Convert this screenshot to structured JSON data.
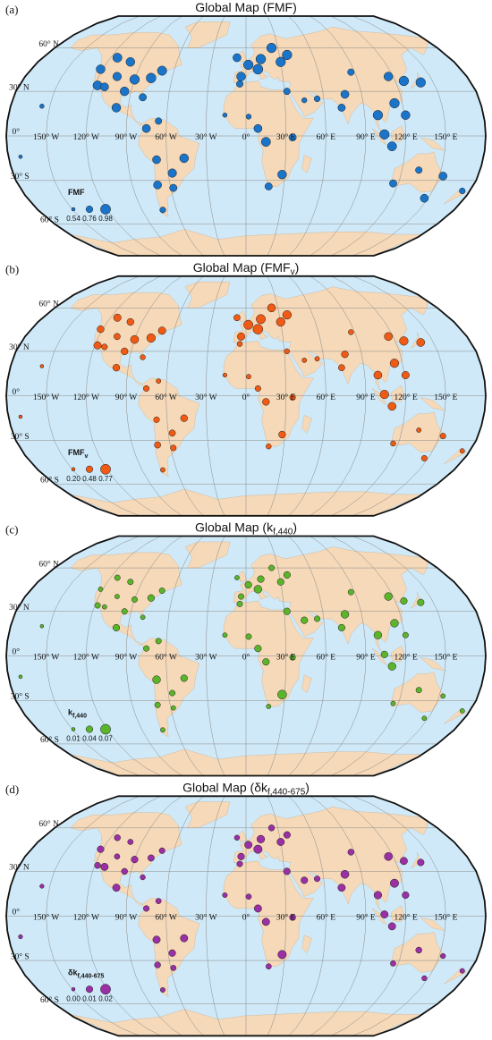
{
  "panels": [
    {
      "label": "(a)",
      "title": "Global Map (FMF)",
      "color": "#1a74c9",
      "legend_title": "FMF",
      "legend": [
        {
          "value": 0.54,
          "label": "0.54"
        },
        {
          "value": 0.76,
          "label": "0.76"
        },
        {
          "value": 0.98,
          "label": "0.98"
        }
      ],
      "values": [
        0.92,
        0.88,
        0.95,
        0.96,
        0.9,
        0.9,
        0.85,
        0.8,
        0.93,
        0.9,
        0.92,
        0.9,
        0.75,
        0.85,
        0.9,
        0.88,
        0.85,
        0.8,
        0.85,
        0.7,
        0.6,
        0.55,
        0.95,
        0.96,
        0.97,
        0.9,
        0.95,
        0.95,
        0.95,
        0.85,
        0.6,
        0.65,
        0.75,
        0.8,
        0.9,
        0.8,
        0.92,
        0.75,
        0.85,
        0.85,
        0.8,
        0.95,
        0.9,
        0.95,
        0.95,
        0.95,
        0.95,
        0.9,
        0.92,
        0.75,
        0.7,
        0.65,
        0.85,
        0.75,
        0.8,
        0.85,
        0.7
      ]
    },
    {
      "label": "(b)",
      "title": "Global Map (FMF",
      "title_sub": "v",
      "title_end": ")",
      "color": "#f05a14",
      "legend_title": "FMF",
      "legend_title_sub": "v",
      "legend": [
        {
          "value": 0.2,
          "label": "0.20"
        },
        {
          "value": 0.48,
          "label": "0.48"
        },
        {
          "value": 0.77,
          "label": "0.77"
        }
      ],
      "values": [
        0.55,
        0.45,
        0.6,
        0.65,
        0.5,
        0.5,
        0.4,
        0.35,
        0.55,
        0.5,
        0.55,
        0.5,
        0.3,
        0.4,
        0.5,
        0.45,
        0.4,
        0.4,
        0.45,
        0.3,
        0.2,
        0.2,
        0.7,
        0.7,
        0.75,
        0.55,
        0.6,
        0.65,
        0.65,
        0.45,
        0.25,
        0.3,
        0.35,
        0.4,
        0.5,
        0.35,
        0.5,
        0.35,
        0.4,
        0.5,
        0.45,
        0.65,
        0.6,
        0.65,
        0.6,
        0.6,
        0.65,
        0.55,
        0.6,
        0.35,
        0.3,
        0.3,
        0.4,
        0.3,
        0.35,
        0.4,
        0.3
      ]
    },
    {
      "label": "(c)",
      "title": "Global Map (k",
      "title_sub": "f,440",
      "title_end": ")",
      "color": "#5ab52a",
      "legend_title": "k",
      "legend_title_sub": "f,440",
      "legend": [
        {
          "value": 0.01,
          "label": "0.01"
        },
        {
          "value": 0.04,
          "label": "0.04"
        },
        {
          "value": 0.07,
          "label": "0.07"
        }
      ],
      "values": [
        0.03,
        0.02,
        0.03,
        0.04,
        0.03,
        0.02,
        0.02,
        0.02,
        0.03,
        0.03,
        0.03,
        0.04,
        0.03,
        0.03,
        0.04,
        0.03,
        0.05,
        0.02,
        0.03,
        0.02,
        0.01,
        0.01,
        0.04,
        0.04,
        0.05,
        0.03,
        0.03,
        0.04,
        0.04,
        0.02,
        0.02,
        0.03,
        0.03,
        0.03,
        0.06,
        0.02,
        0.04,
        0.04,
        0.04,
        0.05,
        0.04,
        0.05,
        0.05,
        0.04,
        0.04,
        0.05,
        0.04,
        0.03,
        0.05,
        0.03,
        0.03,
        0.04,
        0.02,
        0.03,
        0.02,
        0.02,
        0.02
      ]
    },
    {
      "label": "(d)",
      "title": "Global Map (δk",
      "title_sub": "f,440-675",
      "title_end": ")",
      "color": "#9b2fa5",
      "legend_title": "δk",
      "legend_title_sub": "f,440-675",
      "legend": [
        {
          "value": 0,
          "label": "0.00"
        },
        {
          "value": 0.01,
          "label": "0.01"
        },
        {
          "value": 0.02,
          "label": "0.02"
        }
      ],
      "values": [
        0.008,
        0.006,
        0.01,
        0.009,
        0.008,
        0.01,
        0.012,
        0.005,
        0.007,
        0.006,
        0.008,
        0.012,
        0.006,
        0.007,
        0.012,
        0.01,
        0.012,
        0.006,
        0.008,
        0.004,
        0.002,
        0.002,
        0.012,
        0.013,
        0.015,
        0.01,
        0.008,
        0.012,
        0.01,
        0.005,
        0.004,
        0.006,
        0.007,
        0.008,
        0.015,
        0.006,
        0.012,
        0.01,
        0.012,
        0.014,
        0.012,
        0.015,
        0.014,
        0.012,
        0.01,
        0.013,
        0.012,
        0.01,
        0.012,
        0.008,
        0.007,
        0.01,
        0.005,
        0.008,
        0.006,
        0.005,
        0.004
      ]
    }
  ],
  "lat_labels": [
    {
      "value": 60,
      "label": "60° N"
    },
    {
      "value": 30,
      "label": "30° N"
    },
    {
      "value": 0,
      "label": "0°"
    },
    {
      "value": -30,
      "label": "30° S"
    },
    {
      "value": -60,
      "label": "60° S"
    }
  ],
  "lon_labels": [
    {
      "value": -150,
      "label": "150° W"
    },
    {
      "value": -120,
      "label": "120° W"
    },
    {
      "value": -90,
      "label": "90° W"
    },
    {
      "value": -60,
      "label": "60° W"
    },
    {
      "value": -30,
      "label": "30° W"
    },
    {
      "value": 0,
      "label": "0°"
    },
    {
      "value": 30,
      "label": "30° E"
    },
    {
      "value": 60,
      "label": "60° E"
    },
    {
      "value": 90,
      "label": "90° E"
    },
    {
      "value": 120,
      "label": "120° E"
    },
    {
      "value": 150,
      "label": "150° E"
    }
  ],
  "sites": [
    {
      "lon": -118,
      "lat": 34
    },
    {
      "lon": -105,
      "lat": 40
    },
    {
      "lon": -90,
      "lat": 38
    },
    {
      "lon": -77,
      "lat": 39
    },
    {
      "lon": -95,
      "lat": 30
    },
    {
      "lon": -122,
      "lat": 45
    },
    {
      "lon": -112,
      "lat": 33
    },
    {
      "lon": -80,
      "lat": 26
    },
    {
      "lon": -70,
      "lat": 44
    },
    {
      "lon": -100,
      "lat": 50
    },
    {
      "lon": -114,
      "lat": 53
    },
    {
      "lon": -99,
      "lat": 19
    },
    {
      "lon": -66,
      "lat": 10
    },
    {
      "lon": -75,
      "lat": 5
    },
    {
      "lon": -47,
      "lat": -15
    },
    {
      "lon": -57,
      "lat": -25
    },
    {
      "lon": -68,
      "lat": -16
    },
    {
      "lon": -58,
      "lat": -35
    },
    {
      "lon": -70,
      "lat": -33
    },
    {
      "lon": -72,
      "lat": -50
    },
    {
      "lon": -156,
      "lat": 20
    },
    {
      "lon": -171,
      "lat": -14
    },
    {
      "lon": 2,
      "lat": 48
    },
    {
      "lon": 13,
      "lat": 52
    },
    {
      "lon": 10,
      "lat": 45
    },
    {
      "lon": -4,
      "lat": 40
    },
    {
      "lon": 24,
      "lat": 60
    },
    {
      "lon": 30,
      "lat": 50
    },
    {
      "lon": 37,
      "lat": 55
    },
    {
      "lon": -8,
      "lat": 53
    },
    {
      "lon": -16,
      "lat": 14
    },
    {
      "lon": 2,
      "lat": 13
    },
    {
      "lon": -5,
      "lat": 35
    },
    {
      "lon": 35,
      "lat": -1
    },
    {
      "lon": 28,
      "lat": -26
    },
    {
      "lon": 18,
      "lat": -34
    },
    {
      "lon": 15,
      "lat": -4
    },
    {
      "lon": 32,
      "lat": 30
    },
    {
      "lon": 9,
      "lat": 5
    },
    {
      "lon": 77,
      "lat": 28
    },
    {
      "lon": 73,
      "lat": 19
    },
    {
      "lon": 114,
      "lat": 22
    },
    {
      "lon": 116,
      "lat": 40
    },
    {
      "lon": 127,
      "lat": 37
    },
    {
      "lon": 140,
      "lat": 36
    },
    {
      "lon": 100,
      "lat": 14
    },
    {
      "lon": 104,
      "lat": 1
    },
    {
      "lon": 121,
      "lat": 14
    },
    {
      "lon": 110,
      "lat": -7
    },
    {
      "lon": 87,
      "lat": 43
    },
    {
      "lon": 55,
      "lat": 25
    },
    {
      "lon": 45,
      "lat": 24
    },
    {
      "lon": 147,
      "lat": -42
    },
    {
      "lon": 133,
      "lat": -23
    },
    {
      "lon": 116,
      "lat": -32
    },
    {
      "lon": 153,
      "lat": -27
    },
    {
      "lon": 174,
      "lat": -37
    }
  ]
}
